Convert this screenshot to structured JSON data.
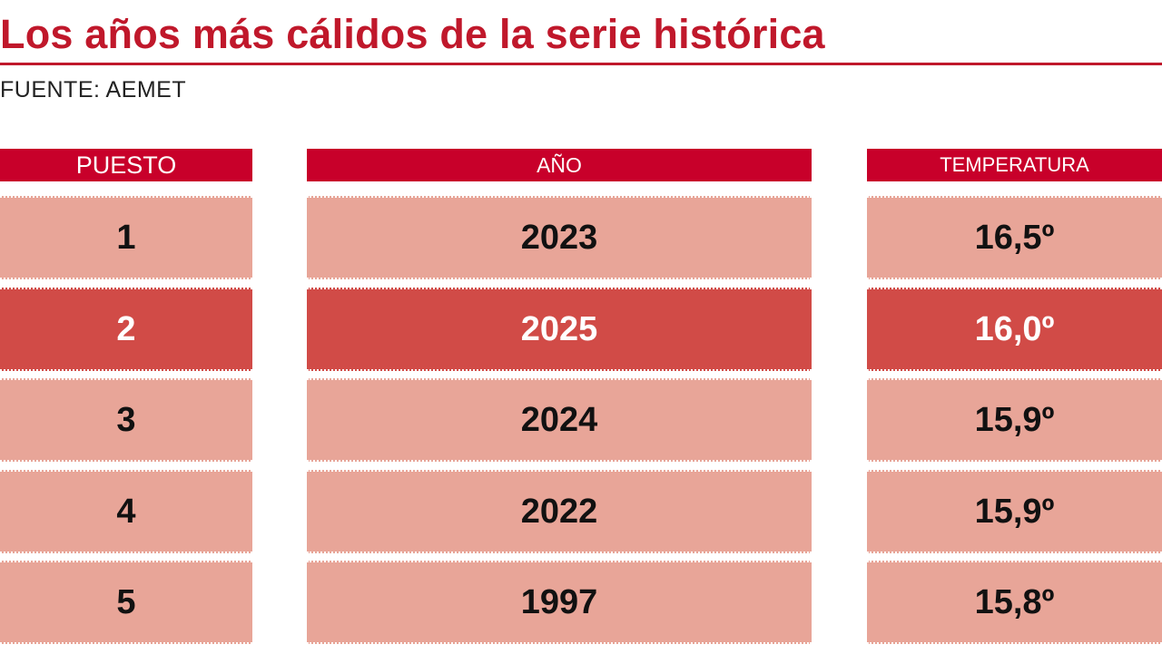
{
  "title": "Los años más cálidos de la serie histórica",
  "source": "FUENTE: AEMET",
  "colors": {
    "title": "#c0182b",
    "header_bg": "#c8002a",
    "row_bg": "#e8a598",
    "row_highlight_bg": "#d14b47"
  },
  "chart_data": {
    "type": "table",
    "title": "Los años más cálidos de la serie histórica",
    "columns": [
      "PUESTO",
      "AÑO",
      "TEMPERATURA"
    ],
    "rows": [
      {
        "puesto": "1",
        "anio": "2023",
        "temperatura": "16,5º",
        "highlight": false
      },
      {
        "puesto": "2",
        "anio": "2025",
        "temperatura": "16,0º",
        "highlight": true
      },
      {
        "puesto": "3",
        "anio": "2024",
        "temperatura": "15,9º",
        "highlight": false
      },
      {
        "puesto": "4",
        "anio": "2022",
        "temperatura": "15,9º",
        "highlight": false
      },
      {
        "puesto": "5",
        "anio": "1997",
        "temperatura": "15,8º",
        "highlight": false
      }
    ]
  }
}
